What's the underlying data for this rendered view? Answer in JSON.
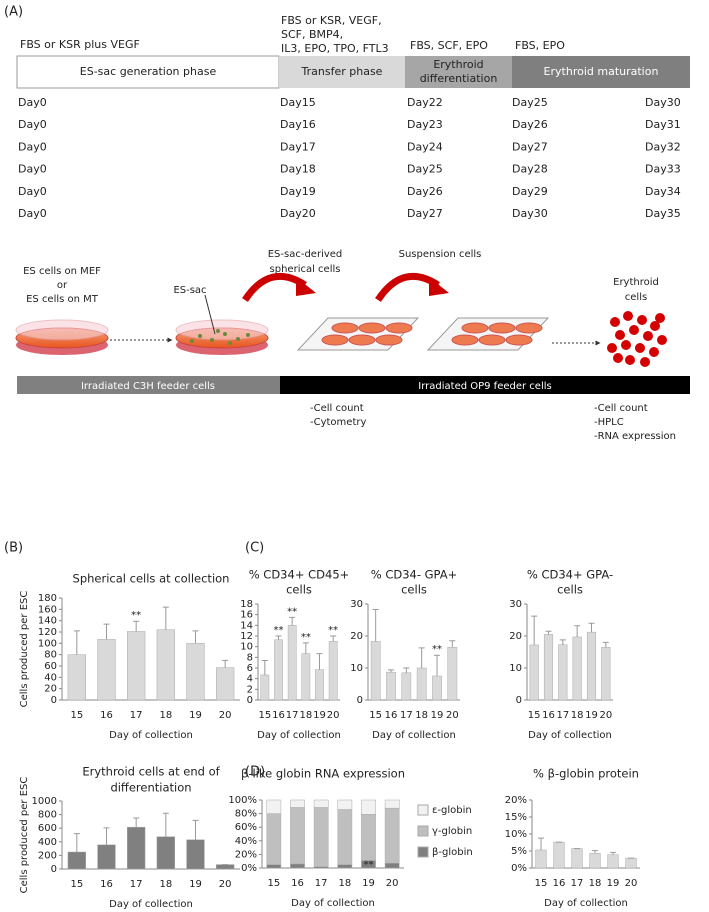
{
  "panel_labels": [
    "(A)",
    "(B)",
    "(C)",
    "(D)"
  ],
  "timeline": {
    "media": [
      [
        "FBS or KSR plus VEGF"
      ],
      [
        "FBS or KSR, VEGF,",
        "SCF, BMP4,",
        "IL3, EPO, TPO, FTL3"
      ],
      [
        "FBS, SCF, EPO"
      ],
      [
        "FBS, EPO"
      ]
    ],
    "phases": [
      [
        "ES-sac generation phase"
      ],
      [
        "Transfer phase"
      ],
      [
        "Erythroid",
        "differentiation"
      ],
      [
        "Erythroid maturation"
      ]
    ],
    "days": [
      [
        "Day0",
        "Day15",
        "Day22",
        "Day25",
        "Day30"
      ],
      [
        "Day0",
        "Day16",
        "Day23",
        "Day26",
        "Day31"
      ],
      [
        "Day0",
        "Day17",
        "Day24",
        "Day27",
        "Day32"
      ],
      [
        "Day0",
        "Day18",
        "Day25",
        "Day28",
        "Day33"
      ],
      [
        "Day0",
        "Day19",
        "Day26",
        "Day29",
        "Day34"
      ],
      [
        "Day0",
        "Day20",
        "Day27",
        "Day30",
        "Day35"
      ]
    ]
  },
  "schematic": {
    "es_cells": [
      "ES cells on MEF",
      "or",
      "ES cells on MT"
    ],
    "es_sac": "ES-sac",
    "spherical": [
      "ES-sac-derived",
      "spherical cells"
    ],
    "suspension": "Suspension cells",
    "erythroid": [
      "Erythroid",
      "cells"
    ],
    "feeders": [
      "Irradiated C3H feeder cells",
      "Irradiated OP9 feeder cells"
    ],
    "notes": [
      [
        "-Cell count",
        "-Cytometry"
      ],
      [
        "-Cell count",
        "-HPLC",
        "-RNA expression"
      ]
    ]
  },
  "chart_data": [
    {
      "type": "bar",
      "title": [
        "Spherical cells at collection"
      ],
      "ylabel": "Cells produced per ESC",
      "xlabel": "Day of collection",
      "categories": [
        "15",
        "16",
        "17",
        "18",
        "19",
        "20"
      ],
      "values": [
        80,
        107,
        121,
        124,
        100,
        57
      ],
      "errors": [
        42,
        27,
        18,
        40,
        22,
        13
      ],
      "color": "#d9d9d9",
      "ylim": [
        0,
        180
      ],
      "yticks": [
        0,
        20,
        40,
        60,
        80,
        100,
        120,
        140,
        160,
        180
      ],
      "grid": false,
      "annotations": [
        {
          "index": 2,
          "text": "**"
        }
      ]
    },
    {
      "type": "bar",
      "title": [
        "Erythroid cells at end of",
        "differentiation"
      ],
      "ylabel": "Cells produced per ESC",
      "xlabel": "Day of collection",
      "categories": [
        "15",
        "16",
        "17",
        "18",
        "19",
        "20"
      ],
      "values": [
        250,
        355,
        615,
        475,
        430,
        65
      ],
      "errors": [
        270,
        250,
        135,
        345,
        285,
        0
      ],
      "color": "#808080",
      "ylim": [
        0,
        1000
      ],
      "yticks": [
        0,
        200,
        400,
        600,
        800,
        1000
      ],
      "grid": false
    },
    {
      "type": "bar",
      "title": [
        "% CD34+ CD45+",
        "cells"
      ],
      "xlabel": "Day of collection",
      "categories": [
        "15",
        "16",
        "17",
        "18",
        "19",
        "20"
      ],
      "values": [
        4.7,
        11.3,
        14.0,
        8.7,
        5.7,
        11.0
      ],
      "errors": [
        2.7,
        0.7,
        1.5,
        2.0,
        3.0,
        1.0
      ],
      "color": "#d9d9d9",
      "ylim": [
        0,
        18
      ],
      "yticks": [
        0,
        2,
        4,
        6,
        8,
        10,
        12,
        14,
        16,
        18
      ],
      "grid": false,
      "annotations": [
        {
          "index": 1,
          "text": "**"
        },
        {
          "index": 2,
          "text": "**"
        },
        {
          "index": 3,
          "text": "**"
        },
        {
          "index": 5,
          "text": "**"
        }
      ]
    },
    {
      "type": "bar",
      "title": [
        "% CD34- GPA+",
        "cells"
      ],
      "xlabel": "Day of collection",
      "categories": [
        "15",
        "16",
        "17",
        "18",
        "19",
        "20"
      ],
      "values": [
        18.3,
        8.7,
        8.5,
        10,
        7.5,
        16.5
      ],
      "errors": [
        10,
        0.7,
        1.5,
        6.3,
        6.5,
        2
      ],
      "color": "#d9d9d9",
      "ylim": [
        0,
        30
      ],
      "yticks": [
        0,
        10,
        20,
        30
      ],
      "grid": false,
      "annotations": [
        {
          "index": 4,
          "text": "**"
        }
      ]
    },
    {
      "type": "bar",
      "title": [
        "% CD34+ GPA-",
        "cells"
      ],
      "xlabel": "Day of collection",
      "categories": [
        "15",
        "16",
        "17",
        "18",
        "19",
        "20"
      ],
      "values": [
        17.2,
        20.5,
        17.3,
        19.7,
        21.2,
        16.5
      ],
      "errors": [
        9,
        1,
        1.5,
        3.5,
        2.8,
        1.5
      ],
      "color": "#d9d9d9",
      "ylim": [
        0,
        30
      ],
      "yticks": [
        0,
        10,
        20,
        30
      ],
      "grid": false
    },
    {
      "type": "bar",
      "stacked": true,
      "title": [
        "β-like globin RNA expression"
      ],
      "xlabel": "Day of collection",
      "categories": [
        "15",
        "16",
        "17",
        "18",
        "19",
        "20"
      ],
      "series": [
        {
          "name": "β-globin",
          "color": "#7f7f7f",
          "values": [
            5,
            6,
            2,
            5,
            11,
            7
          ]
        },
        {
          "name": "γ-globin",
          "color": "#bfbfbf",
          "values": [
            75,
            83,
            87,
            81,
            68,
            81
          ],
          "errors": [
            12,
            3,
            1,
            7,
            10,
            4
          ]
        },
        {
          "name": "ε-globin",
          "color": "#f2f2f2",
          "values": [
            20,
            11,
            11,
            14,
            21,
            12
          ]
        }
      ],
      "ylim": [
        0,
        100
      ],
      "yticks": [
        {
          "value": 0,
          "label": "0%"
        },
        {
          "value": 20,
          "label": "20%"
        },
        {
          "value": 40,
          "label": "40%"
        },
        {
          "value": 60,
          "label": "60%"
        },
        {
          "value": 80,
          "label": "80%"
        },
        {
          "value": 100,
          "label": "100%"
        }
      ],
      "grid": false,
      "legend": "right",
      "annotations": [
        {
          "index": 4,
          "text": "**"
        }
      ]
    },
    {
      "type": "bar",
      "title": [
        "% β-globin protein"
      ],
      "xlabel": "Day of collection",
      "categories": [
        "15",
        "16",
        "17",
        "18",
        "19",
        "20"
      ],
      "values": [
        5.3,
        7.6,
        5.7,
        4.3,
        3.9,
        2.9
      ],
      "errors": [
        3.5,
        0,
        0,
        0.8,
        0.7,
        0
      ],
      "color": "#d9d9d9",
      "ylim": [
        0,
        20
      ],
      "yticks": [
        {
          "value": 0,
          "label": "0%"
        },
        {
          "value": 5,
          "label": "5%"
        },
        {
          "value": 10,
          "label": "10%"
        },
        {
          "value": 15,
          "label": "15%"
        },
        {
          "value": 20,
          "label": "20%"
        }
      ],
      "grid": false
    }
  ]
}
